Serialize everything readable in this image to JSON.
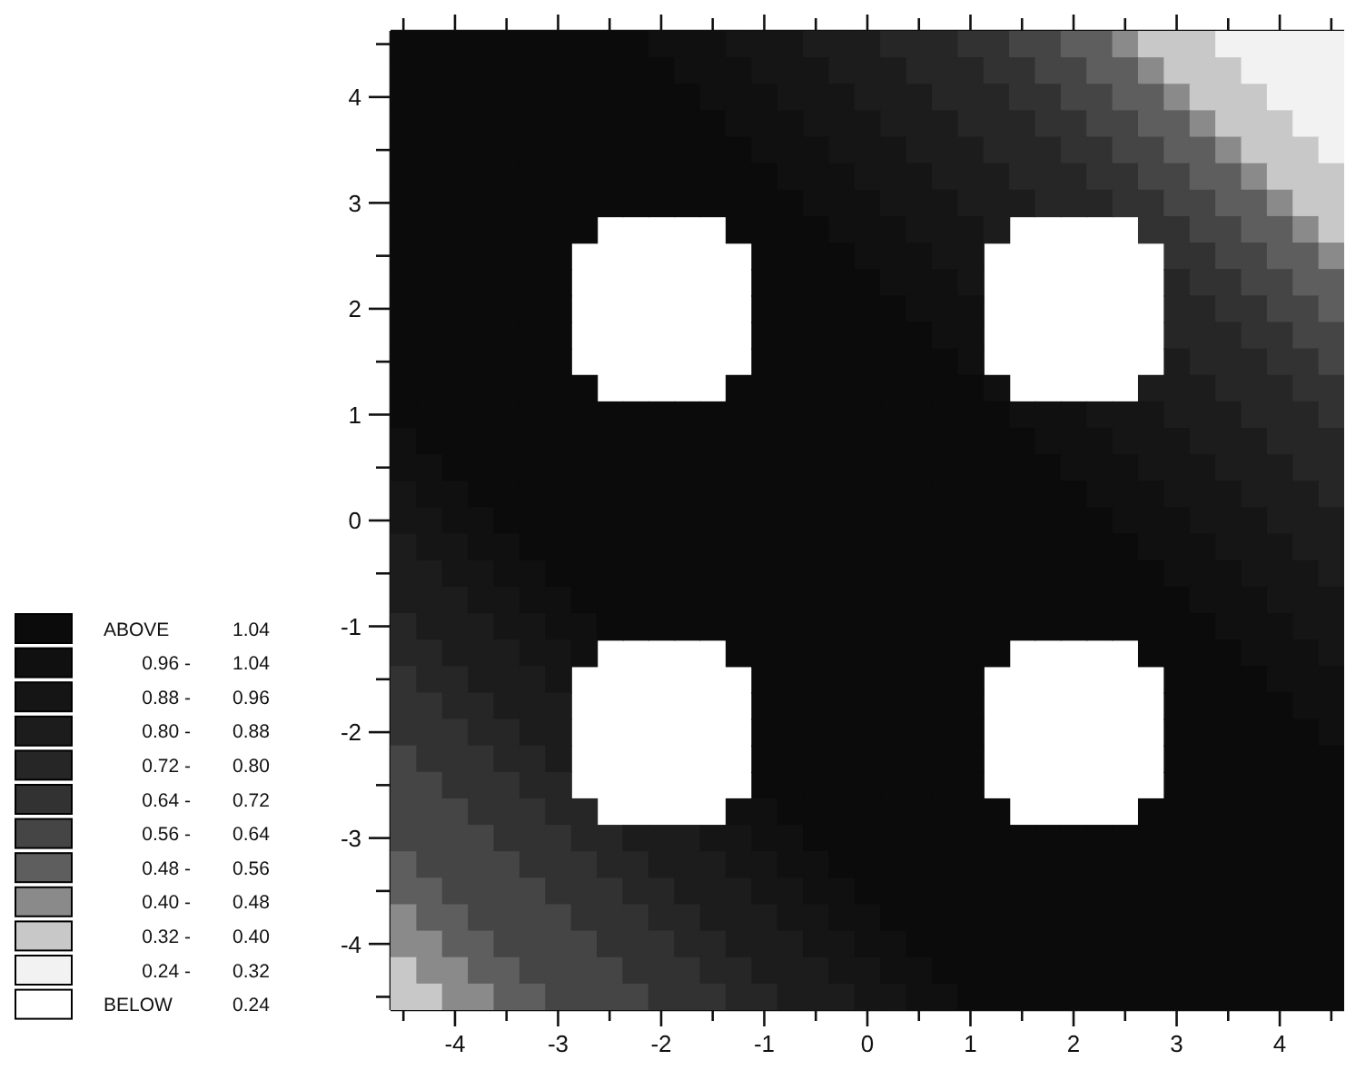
{
  "chart_data": {
    "type": "heatmap",
    "x": [
      -4.5,
      -4.25,
      -4,
      -3.75,
      -3.5,
      -3.25,
      -3,
      -2.75,
      -2.5,
      -2.25,
      -2,
      -1.75,
      -1.5,
      -1.25,
      -1,
      -0.75,
      -0.5,
      -0.25,
      0,
      0.25,
      0.5,
      0.75,
      1,
      1.25,
      1.5,
      1.75,
      2,
      2.25,
      2.5,
      2.75,
      3,
      3.25,
      3.5,
      3.75,
      4,
      4.25,
      4.5
    ],
    "xlim": [
      -4.625,
      4.625
    ],
    "ylim": [
      -4.625,
      4.625
    ],
    "xticks": [
      {
        "value": -4.5,
        "label": null
      },
      -4,
      {
        "value": -3.5,
        "label": null
      },
      -3,
      {
        "value": -2.5,
        "label": null
      },
      -2,
      {
        "value": -1.5,
        "label": null
      },
      -1,
      {
        "value": -0.5,
        "label": null
      },
      0,
      {
        "value": 0.5,
        "label": null
      },
      1,
      {
        "value": 1.5,
        "label": null
      },
      2,
      {
        "value": 2.5,
        "label": null
      },
      3,
      {
        "value": 3.5,
        "label": null
      },
      4,
      {
        "value": 4.5,
        "label": null
      }
    ],
    "yticks": [
      {
        "value": -4.5,
        "label": null
      },
      -4,
      {
        "value": -3.5,
        "label": null
      },
      -3,
      {
        "value": -2.5,
        "label": null
      },
      -2,
      {
        "value": -1.5,
        "label": null
      },
      -1,
      {
        "value": -0.5,
        "label": null
      },
      0,
      {
        "value": 0.5,
        "label": null
      },
      1,
      {
        "value": 1.5,
        "label": null
      },
      2,
      {
        "value": 2.5,
        "label": null
      },
      3,
      {
        "value": 3.5,
        "label": null
      },
      4,
      {
        "value": 4.5,
        "label": null
      }
    ],
    "clim": [
      0.24,
      1.04
    ],
    "cticks": [
      {
        "value": 0.96,
        "label": "0.96 -"
      },
      {
        "value": 0.88,
        "label": "0.88 -"
      },
      {
        "value": 0.8,
        "label": "0.80 -"
      },
      {
        "value": 0.72,
        "label": "0.72 -"
      },
      {
        "value": 0.64,
        "label": "0.64 -"
      },
      {
        "value": 0.56,
        "label": "0.56 -"
      },
      {
        "value": 0.48,
        "label": "0.48 -"
      },
      {
        "value": 0.4,
        "label": "0.40 -"
      },
      {
        "value": 0.32,
        "label": "0.32 -"
      },
      {
        "value": 0.24,
        "label": "0.24 -"
      }
    ],
    "annotations": [
      "ABOVE",
      "1.04",
      "1.04",
      "0.96",
      "0.88",
      "0.80",
      "0.72",
      "0.64",
      "0.56",
      "0.48",
      "0.40",
      "0.32",
      "BELOW",
      "0.24"
    ],
    "colors": [
      "#0b0b0b",
      "#101010",
      "#151515",
      "#1c1c1c",
      "#262626",
      "#323232",
      "#454545",
      "#5e5e5e",
      "#8a8a8a",
      "#c8c8c8",
      "#f2f2f2",
      "#ffffff"
    ],
    "cells": [
      [
        1.04,
        1.04,
        1.04,
        1.04,
        1.04,
        1.04,
        1.04,
        1.04,
        1.04,
        1.04,
        0.96,
        0.96,
        0.96,
        0.88,
        0.88,
        0.88,
        0.8,
        0.8,
        0.8,
        0.72,
        0.72,
        0.72,
        0.64,
        0.64,
        0.56,
        0.56,
        0.48,
        0.48,
        0.4,
        0.32,
        0.32,
        0.32,
        0.24,
        0.24,
        0.24,
        0.24,
        0.24
      ],
      [
        1.04,
        1.04,
        1.04,
        1.04,
        1.04,
        1.04,
        1.04,
        1.04,
        1.04,
        1.04,
        1.04,
        0.96,
        0.96,
        0.96,
        0.88,
        0.88,
        0.88,
        0.8,
        0.8,
        0.8,
        0.72,
        0.72,
        0.72,
        0.64,
        0.64,
        0.56,
        0.56,
        0.48,
        0.48,
        0.4,
        0.32,
        0.32,
        0.32,
        0.24,
        0.24,
        0.24,
        0.24
      ],
      [
        1.04,
        1.04,
        1.04,
        1.04,
        1.04,
        1.04,
        1.04,
        1.04,
        1.04,
        1.04,
        1.04,
        1.04,
        0.96,
        0.96,
        0.96,
        0.88,
        0.88,
        0.88,
        0.8,
        0.8,
        0.8,
        0.72,
        0.72,
        0.72,
        0.64,
        0.64,
        0.56,
        0.56,
        0.48,
        0.48,
        0.4,
        0.32,
        0.32,
        0.32,
        0.24,
        0.24,
        0.24
      ],
      [
        1.04,
        1.04,
        1.04,
        1.04,
        1.04,
        1.04,
        1.04,
        1.04,
        1.04,
        1.04,
        1.04,
        1.04,
        1.04,
        0.96,
        0.96,
        0.96,
        0.88,
        0.88,
        0.88,
        0.8,
        0.8,
        0.8,
        0.72,
        0.72,
        0.72,
        0.64,
        0.64,
        0.56,
        0.56,
        0.48,
        0.48,
        0.4,
        0.32,
        0.32,
        0.32,
        0.24,
        0.24
      ],
      [
        1.04,
        1.04,
        1.04,
        1.04,
        1.04,
        1.04,
        1.04,
        1.04,
        1.04,
        1.04,
        1.04,
        1.04,
        1.04,
        1.04,
        0.96,
        0.96,
        0.96,
        0.88,
        0.88,
        0.88,
        0.8,
        0.8,
        0.8,
        0.72,
        0.72,
        0.72,
        0.64,
        0.64,
        0.56,
        0.56,
        0.48,
        0.48,
        0.4,
        0.32,
        0.32,
        0.32,
        0.24
      ],
      [
        1.04,
        1.04,
        1.04,
        1.04,
        1.04,
        1.04,
        1.04,
        1.04,
        1.04,
        1.04,
        1.04,
        1.04,
        1.04,
        1.04,
        1.04,
        0.96,
        0.96,
        0.96,
        0.88,
        0.88,
        0.88,
        0.8,
        0.8,
        0.8,
        0.72,
        0.72,
        0.72,
        0.64,
        0.64,
        0.56,
        0.56,
        0.48,
        0.48,
        0.4,
        0.32,
        0.32,
        0.32
      ],
      [
        1.04,
        1.04,
        1.04,
        1.04,
        1.04,
        1.04,
        1.04,
        1.04,
        1.04,
        1.04,
        1.04,
        1.04,
        1.04,
        1.04,
        1.04,
        1.04,
        0.96,
        0.96,
        0.96,
        0.88,
        0.88,
        0.88,
        0.8,
        0.8,
        0.8,
        0.72,
        0.72,
        0.72,
        0.64,
        0.64,
        0.56,
        0.56,
        0.48,
        0.48,
        0.4,
        0.32,
        0.32
      ],
      [
        1.04,
        1.04,
        1.04,
        1.04,
        1.04,
        1.04,
        1.04,
        1.04,
        null,
        null,
        null,
        null,
        null,
        1.04,
        1.04,
        1.04,
        1.04,
        0.96,
        0.96,
        0.96,
        0.88,
        0.88,
        0.88,
        0.8,
        null,
        null,
        null,
        null,
        null,
        0.64,
        0.64,
        0.56,
        0.56,
        0.48,
        0.48,
        0.4,
        0.32
      ],
      [
        1.04,
        1.04,
        1.04,
        1.04,
        1.04,
        1.04,
        1.04,
        null,
        null,
        null,
        null,
        null,
        null,
        null,
        1.04,
        1.04,
        1.04,
        1.04,
        0.96,
        0.96,
        0.96,
        0.88,
        0.88,
        null,
        null,
        null,
        null,
        null,
        null,
        null,
        0.64,
        0.64,
        0.56,
        0.56,
        0.48,
        0.48,
        0.4
      ],
      [
        1.04,
        1.04,
        1.04,
        1.04,
        1.04,
        1.04,
        1.04,
        null,
        null,
        null,
        null,
        null,
        null,
        null,
        1.04,
        1.04,
        1.04,
        1.04,
        1.04,
        0.96,
        0.96,
        0.96,
        0.88,
        null,
        null,
        null,
        null,
        null,
        null,
        null,
        0.72,
        0.64,
        0.64,
        0.56,
        0.56,
        0.48,
        0.48
      ],
      [
        1.04,
        1.04,
        1.04,
        1.04,
        1.04,
        1.04,
        1.04,
        null,
        null,
        null,
        null,
        null,
        null,
        null,
        1.04,
        1.04,
        1.04,
        1.04,
        1.04,
        1.04,
        0.96,
        0.96,
        0.96,
        null,
        null,
        null,
        null,
        null,
        null,
        null,
        0.72,
        0.72,
        0.64,
        0.64,
        0.56,
        0.56,
        0.48
      ],
      [
        1.04,
        1.04,
        1.04,
        1.04,
        1.04,
        1.04,
        1.04,
        null,
        null,
        null,
        null,
        null,
        null,
        null,
        1.04,
        1.04,
        1.04,
        1.04,
        1.04,
        1.04,
        1.04,
        0.96,
        0.96,
        null,
        null,
        null,
        null,
        null,
        null,
        null,
        0.72,
        0.72,
        0.72,
        0.64,
        0.64,
        0.56,
        0.56
      ],
      [
        1.04,
        1.04,
        1.04,
        1.04,
        1.04,
        1.04,
        1.04,
        null,
        null,
        null,
        null,
        null,
        null,
        null,
        1.04,
        1.04,
        1.04,
        1.04,
        1.04,
        1.04,
        1.04,
        1.04,
        0.96,
        null,
        null,
        null,
        null,
        null,
        null,
        null,
        0.8,
        0.72,
        0.72,
        0.72,
        0.64,
        0.64,
        0.56
      ],
      [
        1.04,
        1.04,
        1.04,
        1.04,
        1.04,
        1.04,
        1.04,
        1.04,
        null,
        null,
        null,
        null,
        null,
        1.04,
        1.04,
        1.04,
        1.04,
        1.04,
        1.04,
        1.04,
        1.04,
        1.04,
        1.04,
        0.96,
        null,
        null,
        null,
        null,
        null,
        0.8,
        0.8,
        0.8,
        0.72,
        0.72,
        0.72,
        0.64,
        0.64
      ],
      [
        1.04,
        1.04,
        1.04,
        1.04,
        1.04,
        1.04,
        1.04,
        1.04,
        1.04,
        1.04,
        1.04,
        1.04,
        1.04,
        1.04,
        1.04,
        1.04,
        1.04,
        1.04,
        1.04,
        1.04,
        1.04,
        1.04,
        1.04,
        1.04,
        0.96,
        0.96,
        0.96,
        0.88,
        0.88,
        0.88,
        0.8,
        0.8,
        0.8,
        0.72,
        0.72,
        0.72,
        0.64
      ],
      [
        0.96,
        1.04,
        1.04,
        1.04,
        1.04,
        1.04,
        1.04,
        1.04,
        1.04,
        1.04,
        1.04,
        1.04,
        1.04,
        1.04,
        1.04,
        1.04,
        1.04,
        1.04,
        1.04,
        1.04,
        1.04,
        1.04,
        1.04,
        1.04,
        1.04,
        0.96,
        0.96,
        0.96,
        0.88,
        0.88,
        0.88,
        0.8,
        0.8,
        0.8,
        0.72,
        0.72,
        0.72
      ],
      [
        0.96,
        0.96,
        1.04,
        1.04,
        1.04,
        1.04,
        1.04,
        1.04,
        1.04,
        1.04,
        1.04,
        1.04,
        1.04,
        1.04,
        1.04,
        1.04,
        1.04,
        1.04,
        1.04,
        1.04,
        1.04,
        1.04,
        1.04,
        1.04,
        1.04,
        1.04,
        0.96,
        0.96,
        0.96,
        0.88,
        0.88,
        0.88,
        0.8,
        0.8,
        0.8,
        0.72,
        0.72
      ],
      [
        0.88,
        0.96,
        0.96,
        1.04,
        1.04,
        1.04,
        1.04,
        1.04,
        1.04,
        1.04,
        1.04,
        1.04,
        1.04,
        1.04,
        1.04,
        1.04,
        1.04,
        1.04,
        1.04,
        1.04,
        1.04,
        1.04,
        1.04,
        1.04,
        1.04,
        1.04,
        1.04,
        0.96,
        0.96,
        0.96,
        0.88,
        0.88,
        0.88,
        0.8,
        0.8,
        0.8,
        0.72
      ],
      [
        0.88,
        0.88,
        0.96,
        0.96,
        1.04,
        1.04,
        1.04,
        1.04,
        1.04,
        1.04,
        1.04,
        1.04,
        1.04,
        1.04,
        1.04,
        1.04,
        1.04,
        1.04,
        1.04,
        1.04,
        1.04,
        1.04,
        1.04,
        1.04,
        1.04,
        1.04,
        1.04,
        1.04,
        0.96,
        0.96,
        0.96,
        0.88,
        0.88,
        0.88,
        0.8,
        0.8,
        0.8
      ],
      [
        0.8,
        0.88,
        0.88,
        0.96,
        0.96,
        1.04,
        1.04,
        1.04,
        1.04,
        1.04,
        1.04,
        1.04,
        1.04,
        1.04,
        1.04,
        1.04,
        1.04,
        1.04,
        1.04,
        1.04,
        1.04,
        1.04,
        1.04,
        1.04,
        1.04,
        1.04,
        1.04,
        1.04,
        1.04,
        0.96,
        0.96,
        0.96,
        0.88,
        0.88,
        0.88,
        0.8,
        0.8
      ],
      [
        0.8,
        0.8,
        0.88,
        0.88,
        0.96,
        0.96,
        1.04,
        1.04,
        1.04,
        1.04,
        1.04,
        1.04,
        1.04,
        1.04,
        1.04,
        1.04,
        1.04,
        1.04,
        1.04,
        1.04,
        1.04,
        1.04,
        1.04,
        1.04,
        1.04,
        1.04,
        1.04,
        1.04,
        1.04,
        1.04,
        0.96,
        0.96,
        0.96,
        0.88,
        0.88,
        0.88,
        0.8
      ],
      [
        0.8,
        0.8,
        0.8,
        0.88,
        0.88,
        0.96,
        0.96,
        1.04,
        1.04,
        1.04,
        1.04,
        1.04,
        1.04,
        1.04,
        1.04,
        1.04,
        1.04,
        1.04,
        1.04,
        1.04,
        1.04,
        1.04,
        1.04,
        1.04,
        1.04,
        1.04,
        1.04,
        1.04,
        1.04,
        1.04,
        1.04,
        0.96,
        0.96,
        0.96,
        0.88,
        0.88,
        0.88
      ],
      [
        0.72,
        0.8,
        0.8,
        0.8,
        0.88,
        0.88,
        0.96,
        0.96,
        1.04,
        1.04,
        1.04,
        1.04,
        1.04,
        1.04,
        1.04,
        1.04,
        1.04,
        1.04,
        1.04,
        1.04,
        1.04,
        1.04,
        1.04,
        1.04,
        1.04,
        1.04,
        1.04,
        1.04,
        1.04,
        1.04,
        1.04,
        1.04,
        0.96,
        0.96,
        0.96,
        0.88,
        0.88
      ],
      [
        0.72,
        0.72,
        0.8,
        0.8,
        0.8,
        0.88,
        0.88,
        0.96,
        null,
        null,
        null,
        null,
        null,
        1.04,
        1.04,
        1.04,
        1.04,
        1.04,
        1.04,
        1.04,
        1.04,
        1.04,
        1.04,
        1.04,
        null,
        null,
        null,
        null,
        null,
        1.04,
        1.04,
        1.04,
        1.04,
        0.96,
        0.96,
        0.96,
        0.88
      ],
      [
        0.64,
        0.72,
        0.72,
        0.8,
        0.8,
        0.8,
        0.88,
        null,
        null,
        null,
        null,
        null,
        null,
        null,
        1.04,
        1.04,
        1.04,
        1.04,
        1.04,
        1.04,
        1.04,
        1.04,
        1.04,
        null,
        null,
        null,
        null,
        null,
        null,
        null,
        1.04,
        1.04,
        1.04,
        1.04,
        0.96,
        0.96,
        0.96
      ],
      [
        0.64,
        0.64,
        0.72,
        0.72,
        0.8,
        0.8,
        0.8,
        null,
        null,
        null,
        null,
        null,
        null,
        null,
        1.04,
        1.04,
        1.04,
        1.04,
        1.04,
        1.04,
        1.04,
        1.04,
        1.04,
        null,
        null,
        null,
        null,
        null,
        null,
        null,
        1.04,
        1.04,
        1.04,
        1.04,
        1.04,
        0.96,
        0.96
      ],
      [
        0.64,
        0.64,
        0.64,
        0.72,
        0.72,
        0.8,
        0.8,
        null,
        null,
        null,
        null,
        null,
        null,
        null,
        1.04,
        1.04,
        1.04,
        1.04,
        1.04,
        1.04,
        1.04,
        1.04,
        1.04,
        null,
        null,
        null,
        null,
        null,
        null,
        null,
        1.04,
        1.04,
        1.04,
        1.04,
        1.04,
        1.04,
        0.96
      ],
      [
        0.56,
        0.64,
        0.64,
        0.64,
        0.72,
        0.72,
        0.8,
        null,
        null,
        null,
        null,
        null,
        null,
        null,
        1.04,
        1.04,
        1.04,
        1.04,
        1.04,
        1.04,
        1.04,
        1.04,
        1.04,
        null,
        null,
        null,
        null,
        null,
        null,
        null,
        1.04,
        1.04,
        1.04,
        1.04,
        1.04,
        1.04,
        1.04
      ],
      [
        0.56,
        0.56,
        0.64,
        0.64,
        0.64,
        0.72,
        0.72,
        null,
        null,
        null,
        null,
        null,
        null,
        null,
        1.04,
        1.04,
        1.04,
        1.04,
        1.04,
        1.04,
        1.04,
        1.04,
        1.04,
        null,
        null,
        null,
        null,
        null,
        null,
        null,
        1.04,
        1.04,
        1.04,
        1.04,
        1.04,
        1.04,
        1.04
      ],
      [
        0.56,
        0.56,
        0.56,
        0.64,
        0.64,
        0.64,
        0.72,
        0.72,
        null,
        null,
        null,
        null,
        null,
        0.96,
        0.96,
        1.04,
        1.04,
        1.04,
        1.04,
        1.04,
        1.04,
        1.04,
        1.04,
        1.04,
        null,
        null,
        null,
        null,
        null,
        1.04,
        1.04,
        1.04,
        1.04,
        1.04,
        1.04,
        1.04,
        1.04
      ],
      [
        0.56,
        0.56,
        0.56,
        0.56,
        0.64,
        0.64,
        0.64,
        0.72,
        0.72,
        0.8,
        0.8,
        0.8,
        0.88,
        0.88,
        0.96,
        0.96,
        1.04,
        1.04,
        1.04,
        1.04,
        1.04,
        1.04,
        1.04,
        1.04,
        1.04,
        1.04,
        1.04,
        1.04,
        1.04,
        1.04,
        1.04,
        1.04,
        1.04,
        1.04,
        1.04,
        1.04,
        1.04
      ],
      [
        0.48,
        0.56,
        0.56,
        0.56,
        0.56,
        0.64,
        0.64,
        0.64,
        0.72,
        0.72,
        0.8,
        0.8,
        0.8,
        0.88,
        0.88,
        0.96,
        0.96,
        1.04,
        1.04,
        1.04,
        1.04,
        1.04,
        1.04,
        1.04,
        1.04,
        1.04,
        1.04,
        1.04,
        1.04,
        1.04,
        1.04,
        1.04,
        1.04,
        1.04,
        1.04,
        1.04,
        1.04
      ],
      [
        0.48,
        0.48,
        0.56,
        0.56,
        0.56,
        0.56,
        0.64,
        0.64,
        0.64,
        0.72,
        0.72,
        0.8,
        0.8,
        0.8,
        0.88,
        0.88,
        0.96,
        0.96,
        1.04,
        1.04,
        1.04,
        1.04,
        1.04,
        1.04,
        1.04,
        1.04,
        1.04,
        1.04,
        1.04,
        1.04,
        1.04,
        1.04,
        1.04,
        1.04,
        1.04,
        1.04,
        1.04
      ],
      [
        0.4,
        0.48,
        0.48,
        0.56,
        0.56,
        0.56,
        0.56,
        0.64,
        0.64,
        0.64,
        0.72,
        0.72,
        0.8,
        0.8,
        0.8,
        0.88,
        0.88,
        0.96,
        0.96,
        1.04,
        1.04,
        1.04,
        1.04,
        1.04,
        1.04,
        1.04,
        1.04,
        1.04,
        1.04,
        1.04,
        1.04,
        1.04,
        1.04,
        1.04,
        1.04,
        1.04,
        1.04
      ],
      [
        0.4,
        0.4,
        0.48,
        0.48,
        0.56,
        0.56,
        0.56,
        0.56,
        0.64,
        0.64,
        0.64,
        0.72,
        0.72,
        0.8,
        0.8,
        0.8,
        0.88,
        0.88,
        0.96,
        0.96,
        1.04,
        1.04,
        1.04,
        1.04,
        1.04,
        1.04,
        1.04,
        1.04,
        1.04,
        1.04,
        1.04,
        1.04,
        1.04,
        1.04,
        1.04,
        1.04,
        1.04
      ],
      [
        0.32,
        0.4,
        0.4,
        0.48,
        0.48,
        0.56,
        0.56,
        0.56,
        0.56,
        0.64,
        0.64,
        0.64,
        0.72,
        0.72,
        0.8,
        0.8,
        0.8,
        0.88,
        0.88,
        0.96,
        0.96,
        1.04,
        1.04,
        1.04,
        1.04,
        1.04,
        1.04,
        1.04,
        1.04,
        1.04,
        1.04,
        1.04,
        1.04,
        1.04,
        1.04,
        1.04,
        1.04
      ],
      [
        0.32,
        0.32,
        0.4,
        0.4,
        0.48,
        0.48,
        0.56,
        0.56,
        0.56,
        0.56,
        0.64,
        0.64,
        0.64,
        0.72,
        0.72,
        0.8,
        0.8,
        0.8,
        0.88,
        0.88,
        0.96,
        0.96,
        1.04,
        1.04,
        1.04,
        1.04,
        1.04,
        1.04,
        1.04,
        1.04,
        1.04,
        1.04,
        1.04,
        1.04,
        1.04,
        1.04,
        1.04
      ]
    ]
  }
}
